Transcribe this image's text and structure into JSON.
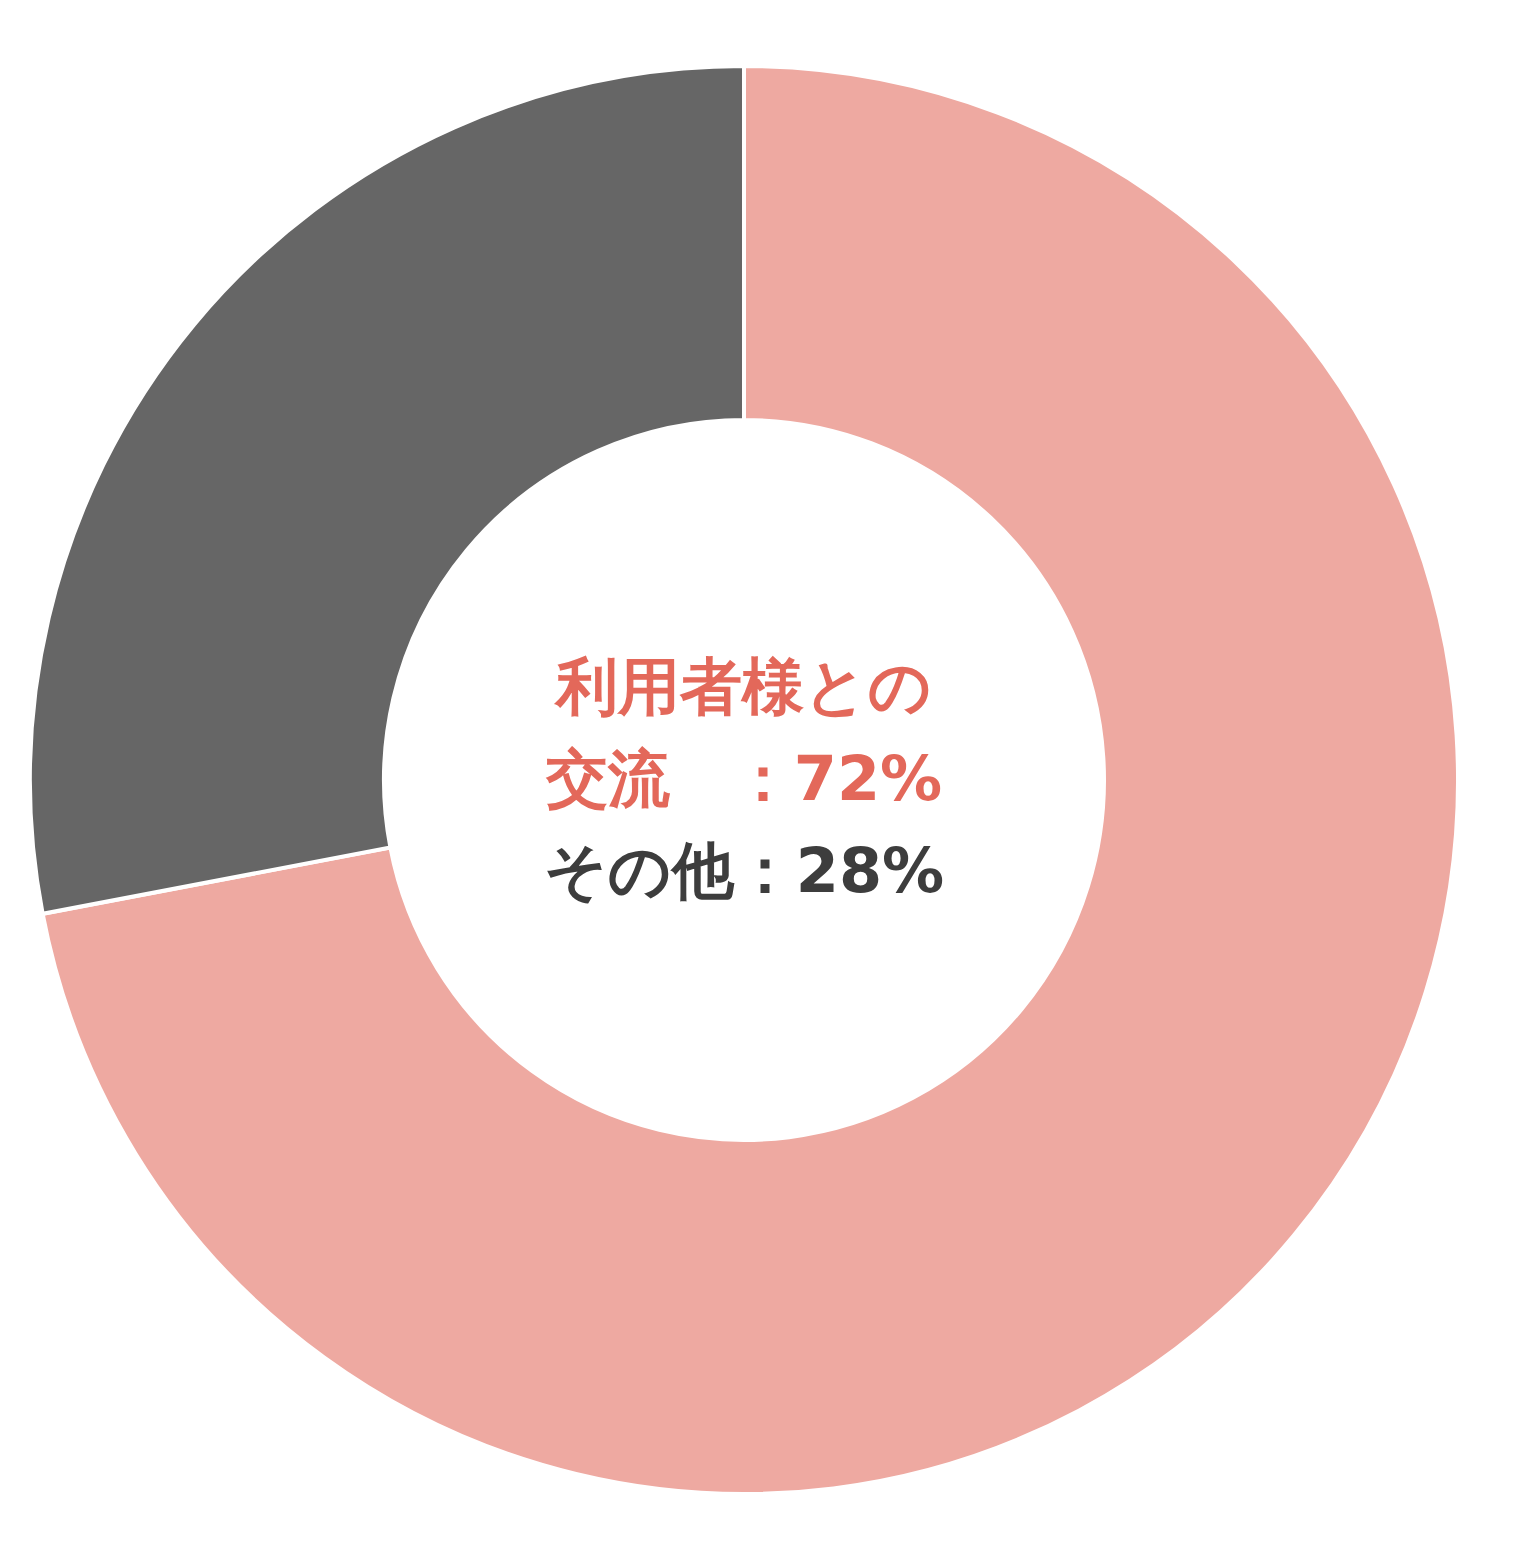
{
  "chart_data": {
    "type": "donut",
    "categories": [
      null,
      null
    ],
    "values": [
      72,
      28
    ],
    "colors": [
      "#eea9a1",
      "#666666"
    ],
    "annotations": [
      "利用者様との交流　：72%",
      "その他：28%"
    ]
  }
}
